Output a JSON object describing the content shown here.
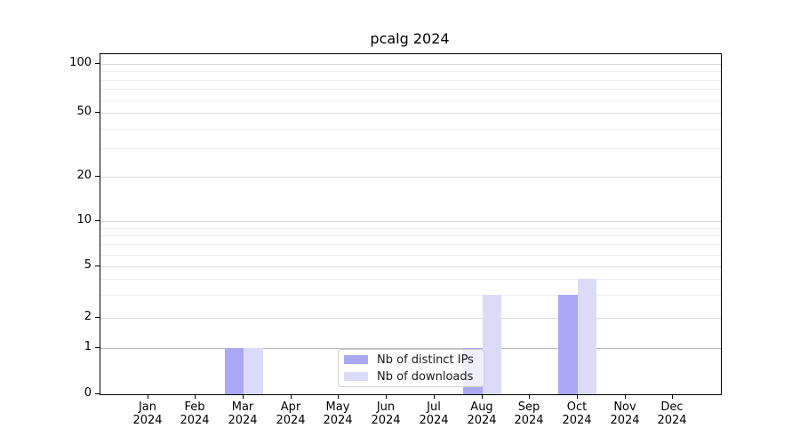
{
  "title": "pcalg 2024",
  "chart_data": {
    "type": "bar",
    "title": "pcalg 2024",
    "categories": [
      "Jan",
      "Feb",
      "Mar",
      "Apr",
      "May",
      "Jun",
      "Jul",
      "Aug",
      "Sep",
      "Oct",
      "Nov",
      "Dec"
    ],
    "year": "2024",
    "series": [
      {
        "name": "Nb of distinct IPs",
        "color": "#a8a8f4",
        "values": [
          0,
          0,
          1,
          0,
          0,
          0,
          0,
          1,
          0,
          3,
          0,
          0
        ]
      },
      {
        "name": "Nb of downloads",
        "color": "#dbdbf9",
        "values": [
          0,
          0,
          1,
          0,
          0,
          0,
          0,
          3,
          0,
          4,
          0,
          0
        ]
      }
    ],
    "y_ticks": [
      0,
      1,
      2,
      5,
      10,
      20,
      50,
      100
    ],
    "ylim": [
      0,
      120
    ],
    "scale": "log",
    "grid": true,
    "legend_position": "bottom-center-inside",
    "colors": {
      "axis": "#000000",
      "grid_major": "#d9d9d9",
      "grid_minor": "#ededed",
      "grid_unit_line": "#bbbbbb"
    }
  }
}
